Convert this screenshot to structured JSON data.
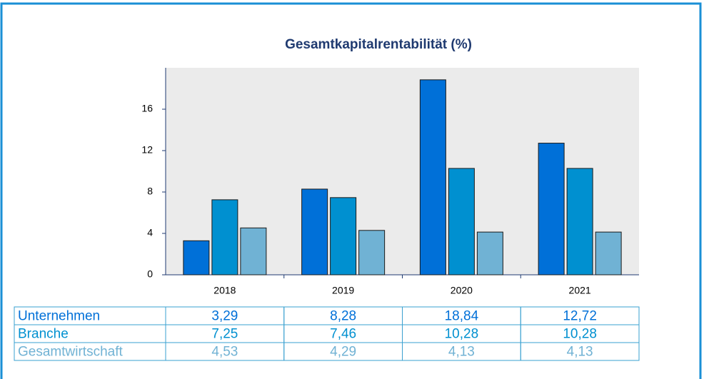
{
  "chart_data": {
    "type": "bar",
    "title": "Gesamtkapitalrentabilität (%)",
    "categories": [
      "2018",
      "2019",
      "2020",
      "2021"
    ],
    "series": [
      {
        "name": "Unternehmen",
        "color": "#0070d8",
        "values": [
          3.29,
          8.28,
          18.84,
          12.72
        ],
        "value_labels": [
          "3,29",
          "8,28",
          "18,84",
          "12,72"
        ]
      },
      {
        "name": "Branche",
        "color": "#0090d0",
        "values": [
          7.25,
          7.46,
          10.28,
          10.28
        ],
        "value_labels": [
          "7,25",
          "7,46",
          "10,28",
          "10,28"
        ]
      },
      {
        "name": "Gesamtwirtschaft",
        "color": "#70b2d4",
        "values": [
          4.53,
          4.29,
          4.13,
          4.13
        ],
        "value_labels": [
          "4,53",
          "4,29",
          "4,13",
          "4,13"
        ]
      }
    ],
    "ylim": [
      0,
      20
    ],
    "yticks": [
      0,
      4,
      8,
      12,
      16
    ],
    "grid": false
  }
}
